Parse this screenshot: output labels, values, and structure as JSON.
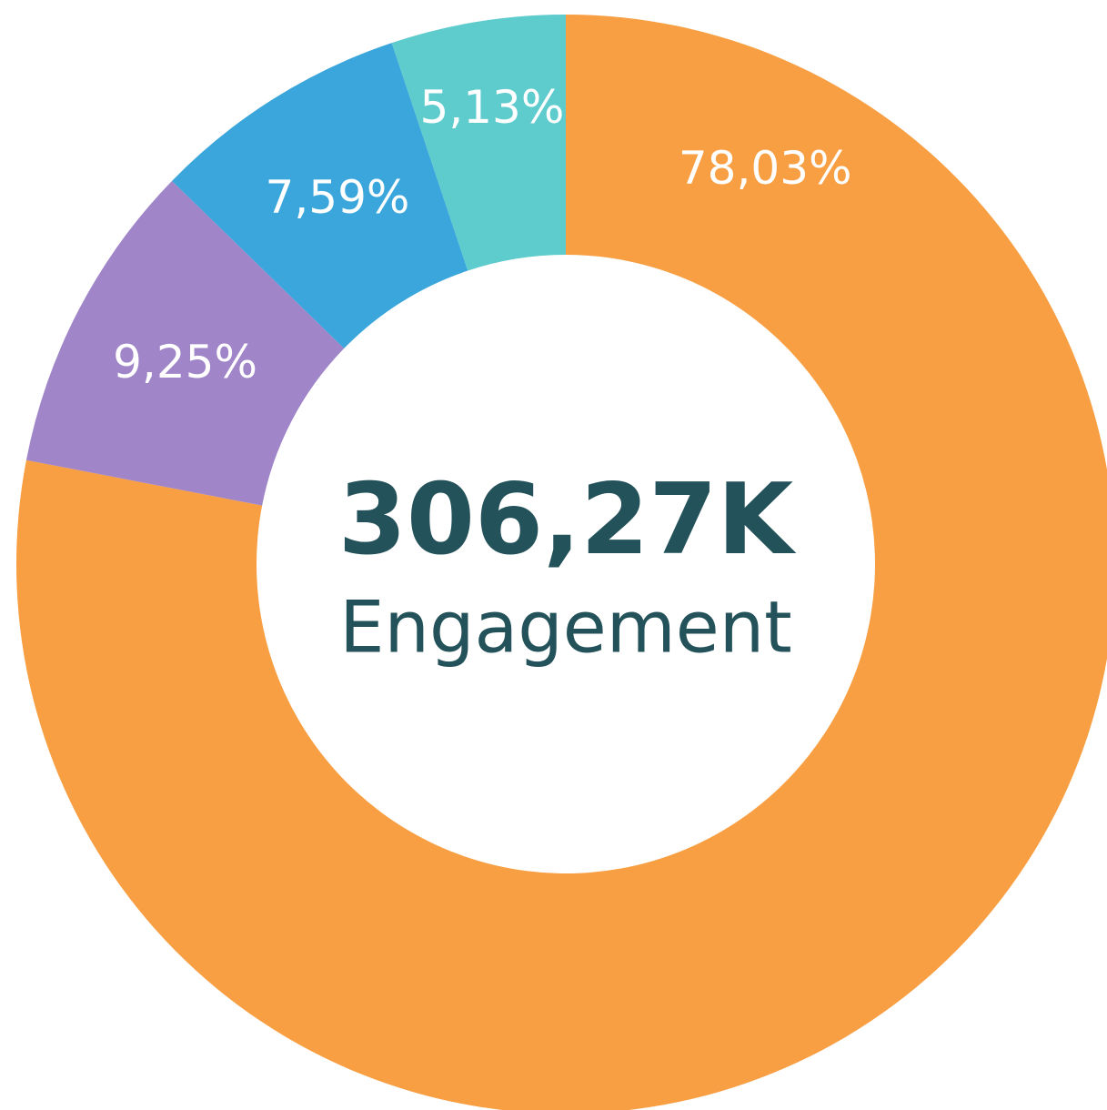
{
  "chart_data": {
    "type": "donut",
    "categories": [
      null,
      null,
      null,
      null
    ],
    "values": [
      78.03,
      9.25,
      7.59,
      5.13
    ],
    "value_labels": [
      "78,03%",
      "9,25%",
      "7,59%",
      "5,13%"
    ],
    "colors": [
      "#f89f43",
      "#a085c8",
      "#3aa6dc",
      "#5ecbcd"
    ],
    "center_value": "306,27K",
    "center_label": "Engagement"
  }
}
